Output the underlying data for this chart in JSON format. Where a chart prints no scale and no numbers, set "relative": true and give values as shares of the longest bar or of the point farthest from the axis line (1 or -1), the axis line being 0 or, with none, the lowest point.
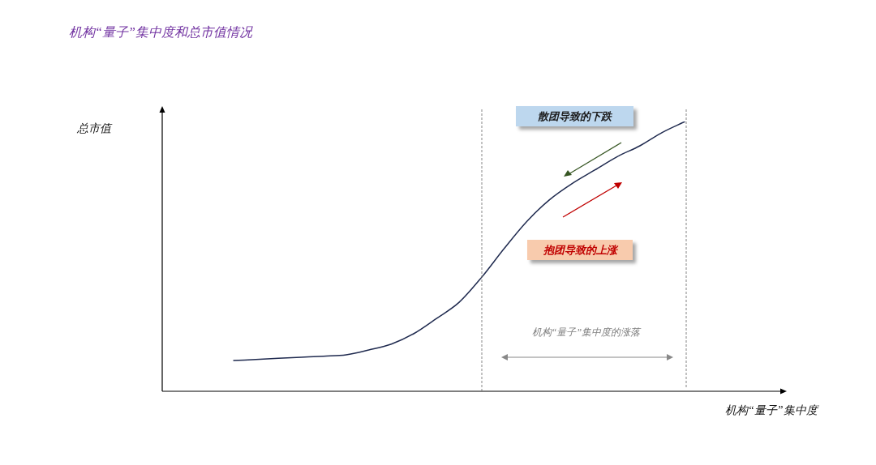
{
  "chart_data": {
    "type": "line",
    "relative": true,
    "title": "机构“量子”集中度和总市值情况",
    "ylabel": "总市值",
    "xlabel": "机构“量子”集中度",
    "annotations": [
      "散团导致的下跌",
      "抱团导致的上涨",
      "机构“量子”集中度的涨落"
    ],
    "categories": [
      null,
      null,
      null,
      null,
      null,
      null,
      null,
      null,
      null,
      null,
      null,
      null,
      null,
      null,
      null,
      null,
      null,
      null,
      null,
      null,
      null,
      null,
      null,
      null,
      null,
      null,
      null,
      null
    ],
    "series": [
      {
        "color": "#1f2a4f",
        "values": [
          null,
          null,
          null,
          0.114,
          0.118,
          0.122,
          0.126,
          0.13,
          0.135,
          0.153,
          0.175,
          0.214,
          0.27,
          0.33,
          0.423,
          0.53,
          0.63,
          0.71,
          0.77,
          0.82,
          0.87,
          0.91,
          0.96,
          1.0,
          null,
          null,
          null,
          null
        ]
      }
    ],
    "legend": false,
    "marker": "none"
  }
}
